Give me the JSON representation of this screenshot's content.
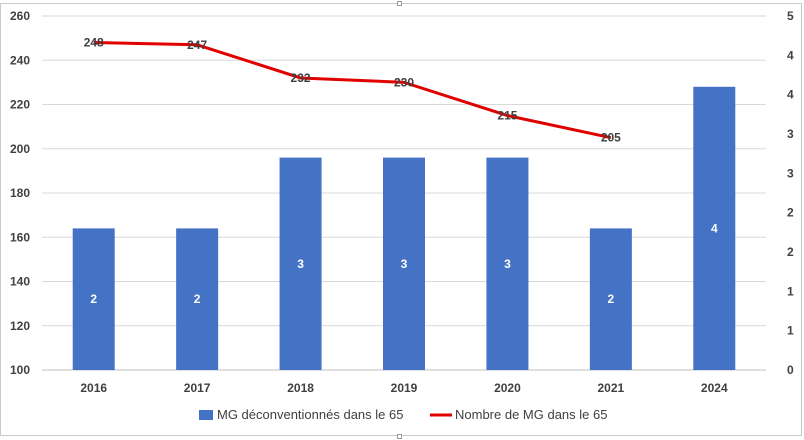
{
  "chart_data": {
    "type": "bar+line",
    "categories": [
      "2016",
      "2017",
      "2018",
      "2019",
      "2020",
      "2021",
      "2024"
    ],
    "series": [
      {
        "name": "MG déconventionnés dans le 65",
        "kind": "bar",
        "axis": "secondary",
        "values": [
          2,
          2,
          3,
          3,
          3,
          2,
          4
        ],
        "color": "#4472C4"
      },
      {
        "name": "Nombre de MG dans le 65",
        "kind": "line",
        "axis": "primary",
        "values": [
          248,
          247,
          232,
          230,
          215,
          205,
          null
        ],
        "color": "#E00000"
      }
    ],
    "y_left": {
      "min": 100,
      "max": 260,
      "ticks": [
        "100",
        "120",
        "140",
        "160",
        "180",
        "200",
        "220",
        "240",
        "260"
      ]
    },
    "y_right": {
      "min": 0,
      "max": 5,
      "ticks": [
        "0",
        "1",
        "1",
        "2",
        "2",
        "3",
        "3",
        "4",
        "4",
        "5"
      ]
    },
    "grid": true,
    "legend_position": "bottom"
  }
}
